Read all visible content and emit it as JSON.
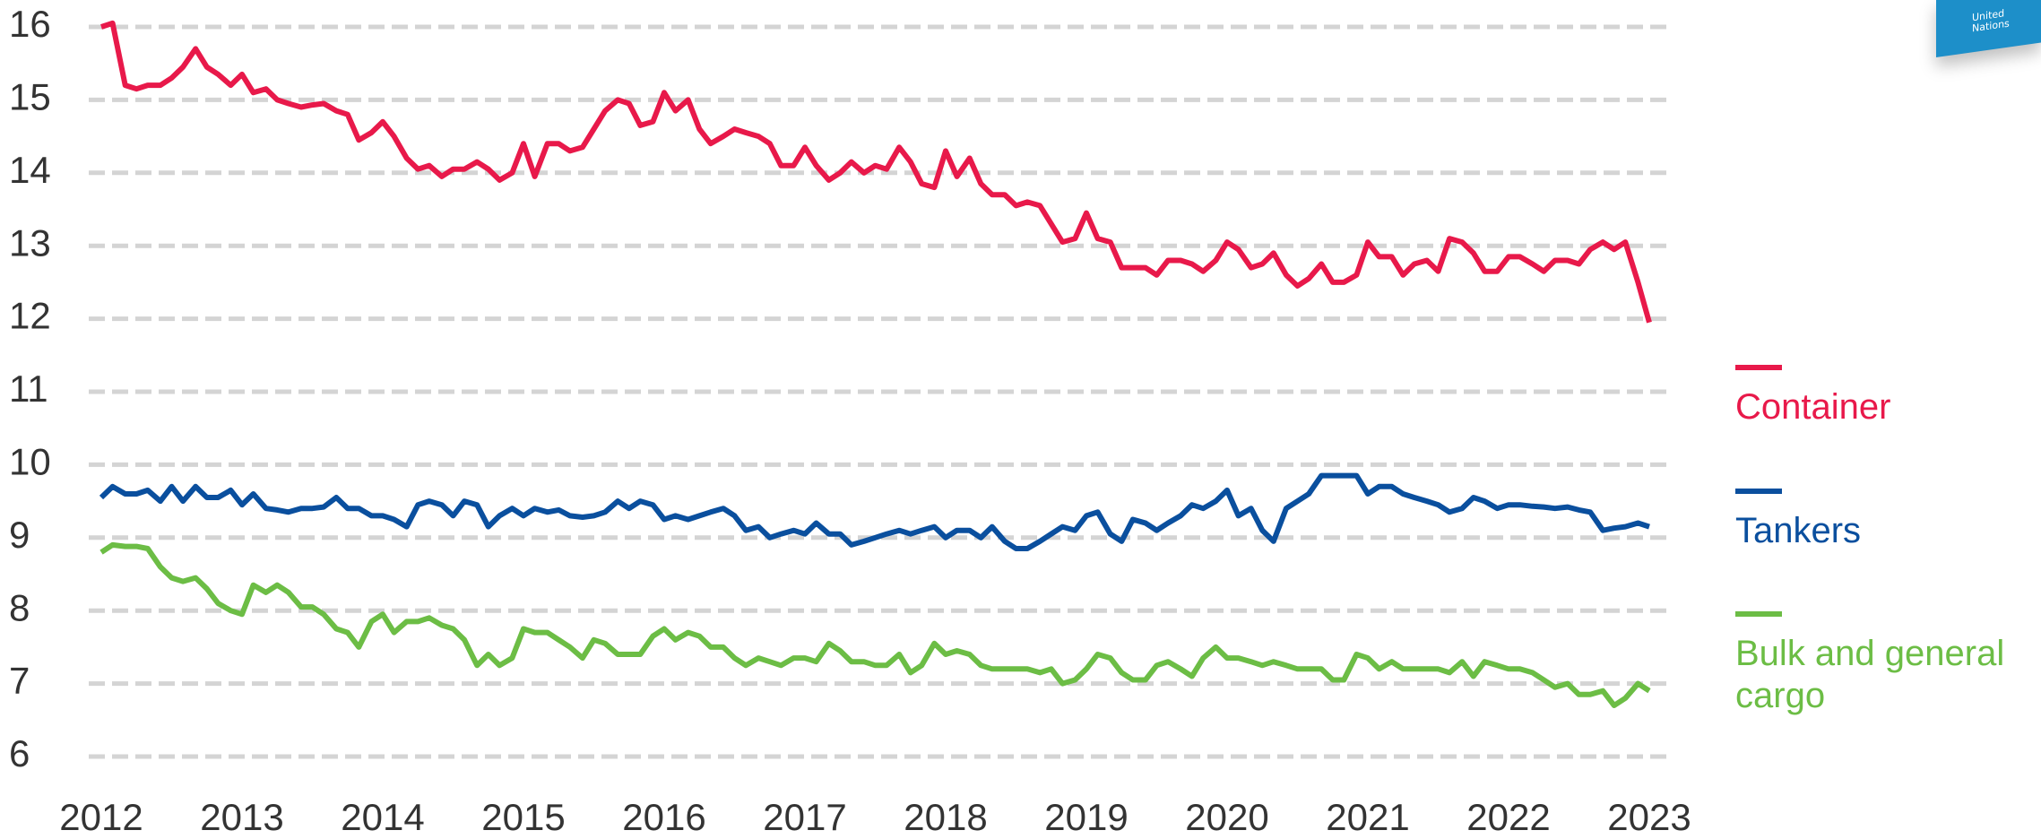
{
  "chart_data": {
    "type": "line",
    "logo_text": "United Nations",
    "x": [
      2012,
      2012.08,
      2012.17,
      2012.25,
      2012.33,
      2012.42,
      2012.5,
      2012.58,
      2012.67,
      2012.75,
      2012.83,
      2012.92,
      2013,
      2013.08,
      2013.17,
      2013.25,
      2013.33,
      2013.42,
      2013.5,
      2013.58,
      2013.67,
      2013.75,
      2013.83,
      2013.92,
      2014,
      2014.08,
      2014.17,
      2014.25,
      2014.33,
      2014.42,
      2014.5,
      2014.58,
      2014.67,
      2014.75,
      2014.83,
      2014.92,
      2015,
      2015.08,
      2015.17,
      2015.25,
      2015.33,
      2015.42,
      2015.5,
      2015.58,
      2015.67,
      2015.75,
      2015.83,
      2015.92,
      2016,
      2016.08,
      2016.17,
      2016.25,
      2016.33,
      2016.42,
      2016.5,
      2016.58,
      2016.67,
      2016.75,
      2016.83,
      2016.92,
      2017,
      2017.08,
      2017.17,
      2017.25,
      2017.33,
      2017.42,
      2017.5,
      2017.58,
      2017.67,
      2017.75,
      2017.83,
      2017.92,
      2018,
      2018.08,
      2018.17,
      2018.25,
      2018.33,
      2018.42,
      2018.5,
      2018.58,
      2018.67,
      2018.75,
      2018.83,
      2018.92,
      2019,
      2019.08,
      2019.17,
      2019.25,
      2019.33,
      2019.42,
      2019.5,
      2019.58,
      2019.67,
      2019.75,
      2019.83,
      2019.92,
      2020,
      2020.08,
      2020.17,
      2020.25,
      2020.33,
      2020.42,
      2020.5,
      2020.58,
      2020.67,
      2020.75,
      2020.83,
      2020.92,
      2021,
      2021.08,
      2021.17,
      2021.25,
      2021.33,
      2021.42,
      2021.5,
      2021.58,
      2021.67,
      2021.75,
      2021.83,
      2021.92,
      2022,
      2022.08,
      2022.17,
      2022.25,
      2022.33,
      2022.42,
      2022.5,
      2022.58,
      2022.67,
      2022.75,
      2022.83,
      2022.92,
      2023
    ],
    "series": [
      {
        "name": "Container",
        "color": "#e8194a",
        "values": [
          16.0,
          16.05,
          15.2,
          15.15,
          15.2,
          15.2,
          15.3,
          15.45,
          15.7,
          15.45,
          15.35,
          15.2,
          15.35,
          15.1,
          15.15,
          15.0,
          14.95,
          14.9,
          14.93,
          14.95,
          14.85,
          14.8,
          14.45,
          14.55,
          14.7,
          14.5,
          14.2,
          14.05,
          14.1,
          13.95,
          14.05,
          14.05,
          14.15,
          14.05,
          13.9,
          14.0,
          14.4,
          13.95,
          14.4,
          14.4,
          14.3,
          14.35,
          14.6,
          14.85,
          15.0,
          14.95,
          14.65,
          14.7,
          15.1,
          14.85,
          15.0,
          14.6,
          14.4,
          14.5,
          14.6,
          14.55,
          14.5,
          14.4,
          14.1,
          14.1,
          14.35,
          14.1,
          13.9,
          14.0,
          14.15,
          14.0,
          14.1,
          14.05,
          14.35,
          14.15,
          13.85,
          13.8,
          14.3,
          13.95,
          14.2,
          13.85,
          13.7,
          13.7,
          13.55,
          13.6,
          13.55,
          13.3,
          13.05,
          13.1,
          13.45,
          13.1,
          13.05,
          12.7,
          12.7,
          12.7,
          12.6,
          12.8,
          12.8,
          12.75,
          12.65,
          12.8,
          13.05,
          12.95,
          12.7,
          12.75,
          12.9,
          12.6,
          12.45,
          12.55,
          12.75,
          12.5,
          12.5,
          12.6,
          13.05,
          12.85,
          12.85,
          12.6,
          12.75,
          12.8,
          12.65,
          13.1,
          13.05,
          12.9,
          12.65,
          12.65,
          12.85,
          12.85,
          12.75,
          12.65,
          12.8,
          12.8,
          12.75,
          12.95,
          13.05,
          12.95,
          13.05,
          12.5,
          11.95
        ]
      },
      {
        "name": "Tankers",
        "color": "#0a4f9e",
        "values": [
          9.55,
          9.7,
          9.6,
          9.6,
          9.65,
          9.5,
          9.7,
          9.5,
          9.7,
          9.55,
          9.55,
          9.65,
          9.45,
          9.6,
          9.4,
          9.38,
          9.35,
          9.4,
          9.4,
          9.42,
          9.55,
          9.4,
          9.4,
          9.3,
          9.3,
          9.25,
          9.15,
          9.45,
          9.5,
          9.45,
          9.3,
          9.5,
          9.45,
          9.15,
          9.3,
          9.4,
          9.3,
          9.4,
          9.35,
          9.38,
          9.3,
          9.28,
          9.3,
          9.35,
          9.5,
          9.4,
          9.5,
          9.45,
          9.25,
          9.3,
          9.25,
          9.3,
          9.35,
          9.4,
          9.3,
          9.1,
          9.15,
          9.0,
          9.05,
          9.1,
          9.05,
          9.2,
          9.05,
          9.05,
          8.9,
          8.95,
          9.0,
          9.05,
          9.1,
          9.05,
          9.1,
          9.15,
          9.0,
          9.1,
          9.1,
          9.0,
          9.15,
          8.95,
          8.85,
          8.85,
          8.95,
          9.05,
          9.15,
          9.1,
          9.3,
          9.35,
          9.05,
          8.95,
          9.25,
          9.2,
          9.1,
          9.2,
          9.3,
          9.45,
          9.4,
          9.5,
          9.65,
          9.3,
          9.4,
          9.1,
          8.95,
          9.4,
          9.5,
          9.6,
          9.85,
          9.85,
          9.85,
          9.85,
          9.6,
          9.7,
          9.7,
          9.6,
          9.55,
          9.5,
          9.45,
          9.35,
          9.4,
          9.55,
          9.5,
          9.4,
          9.45,
          9.45,
          9.43,
          9.42,
          9.4,
          9.42,
          9.38,
          9.35,
          9.1,
          9.13,
          9.15,
          9.2,
          9.15
        ]
      },
      {
        "name": "Bulk and general cargo",
        "color": "#6cbd45",
        "values": [
          8.8,
          8.9,
          8.88,
          8.88,
          8.85,
          8.6,
          8.45,
          8.4,
          8.45,
          8.3,
          8.1,
          8.0,
          7.95,
          8.35,
          8.25,
          8.35,
          8.25,
          8.05,
          8.05,
          7.95,
          7.75,
          7.7,
          7.5,
          7.85,
          7.95,
          7.7,
          7.85,
          7.85,
          7.9,
          7.8,
          7.75,
          7.6,
          7.25,
          7.4,
          7.25,
          7.35,
          7.75,
          7.7,
          7.7,
          7.6,
          7.5,
          7.35,
          7.6,
          7.55,
          7.4,
          7.4,
          7.4,
          7.65,
          7.75,
          7.6,
          7.7,
          7.65,
          7.5,
          7.5,
          7.35,
          7.25,
          7.35,
          7.3,
          7.25,
          7.35,
          7.35,
          7.3,
          7.55,
          7.45,
          7.3,
          7.3,
          7.25,
          7.25,
          7.4,
          7.15,
          7.25,
          7.55,
          7.4,
          7.45,
          7.4,
          7.25,
          7.2,
          7.2,
          7.2,
          7.2,
          7.15,
          7.2,
          7.0,
          7.05,
          7.2,
          7.4,
          7.35,
          7.15,
          7.05,
          7.05,
          7.25,
          7.3,
          7.2,
          7.1,
          7.35,
          7.5,
          7.35,
          7.35,
          7.3,
          7.25,
          7.3,
          7.25,
          7.2,
          7.2,
          7.2,
          7.05,
          7.05,
          7.4,
          7.35,
          7.2,
          7.3,
          7.2,
          7.2,
          7.2,
          7.2,
          7.15,
          7.3,
          7.1,
          7.3,
          7.25,
          7.2,
          7.2,
          7.15,
          7.05,
          6.95,
          7.0,
          6.85,
          6.85,
          6.9,
          6.7,
          6.8,
          7.0,
          6.9
        ]
      }
    ],
    "xlim": [
      2012,
      2023
    ],
    "xticks": [
      2012,
      2013,
      2014,
      2015,
      2016,
      2017,
      2018,
      2019,
      2020,
      2021,
      2022,
      2023
    ],
    "ylim": [
      6,
      16
    ],
    "yticks": [
      6,
      7,
      8,
      9,
      10,
      11,
      12,
      13,
      14,
      15,
      16
    ],
    "grid": true
  }
}
